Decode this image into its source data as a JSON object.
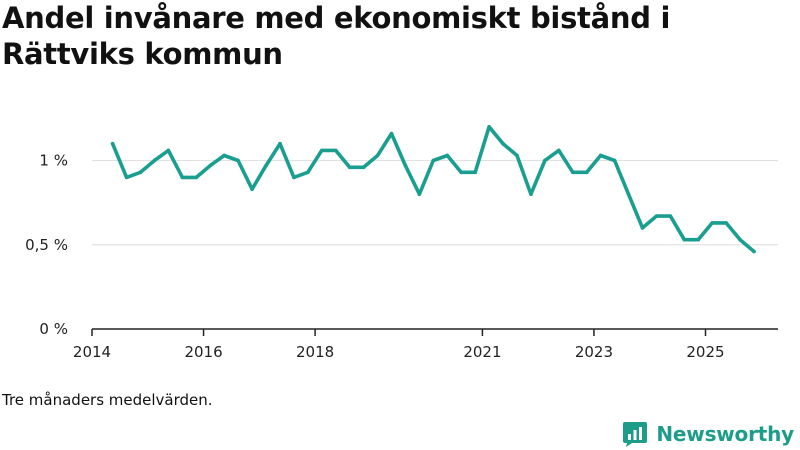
{
  "title": "Andel invånare med ekonomiskt bistånd i Rättviks kommun",
  "note": "Tre månaders medelvärden.",
  "brand": {
    "name": "Newsworthy",
    "icon": "newsworthy-logo-icon"
  },
  "colors": {
    "line": "#1a9e8f",
    "grid": "#e2e2e2",
    "axis": "#222222",
    "brand": "#1e9c8a"
  },
  "chart_data": {
    "type": "line",
    "title": "Andel invånare med ekonomiskt bistånd i Rättviks kommun",
    "xlabel": "",
    "ylabel": "",
    "ylim": [
      0,
      1.3
    ],
    "xlim": [
      2014.0,
      2026.3
    ],
    "y_ticks": [
      {
        "value": 0,
        "label": "0 %"
      },
      {
        "value": 0.5,
        "label": "0,5 %"
      },
      {
        "value": 1,
        "label": "1 %"
      }
    ],
    "x_ticks": [
      {
        "value": 2014.0,
        "label": "2014"
      },
      {
        "value": 2016.0,
        "label": "2016"
      },
      {
        "value": 2018.0,
        "label": "2018"
      },
      {
        "value": 2021.0,
        "label": "2021"
      },
      {
        "value": 2023.0,
        "label": "2023"
      },
      {
        "value": 2025.0,
        "label": "2025"
      }
    ],
    "grid": true,
    "series": [
      {
        "name": "Andel invånare med ekonomiskt bistånd",
        "x": [
          2014.37,
          2014.62,
          2014.87,
          2015.12,
          2015.37,
          2015.62,
          2015.87,
          2016.12,
          2016.37,
          2016.62,
          2016.87,
          2017.12,
          2017.37,
          2017.62,
          2017.87,
          2018.12,
          2018.37,
          2018.62,
          2018.87,
          2019.12,
          2019.37,
          2019.62,
          2019.87,
          2020.12,
          2020.37,
          2020.62,
          2020.87,
          2021.12,
          2021.37,
          2021.62,
          2021.87,
          2022.12,
          2022.37,
          2022.62,
          2022.87,
          2023.12,
          2023.37,
          2023.62,
          2023.87,
          2024.12,
          2024.37,
          2024.62,
          2024.87,
          2025.12,
          2025.37,
          2025.62,
          2025.87
        ],
        "values": [
          1.1,
          0.9,
          0.93,
          1.0,
          1.06,
          0.9,
          0.9,
          0.97,
          1.03,
          1.0,
          0.83,
          0.97,
          1.1,
          0.9,
          0.93,
          1.06,
          1.06,
          0.96,
          0.96,
          1.03,
          1.16,
          0.97,
          0.8,
          1.0,
          1.03,
          0.93,
          0.93,
          1.2,
          1.1,
          1.03,
          0.8,
          1.0,
          1.06,
          0.93,
          0.93,
          1.03,
          1.0,
          0.8,
          0.6,
          0.67,
          0.67,
          0.53,
          0.53,
          0.63,
          0.63,
          0.53,
          0.46
        ]
      }
    ]
  }
}
